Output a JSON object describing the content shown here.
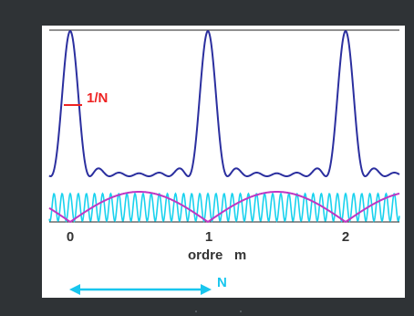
{
  "diagram": {
    "width_label": "1/N",
    "order_ticks": [
      "0",
      "1",
      "2"
    ],
    "order_axis_label": "ordre   m",
    "n_label": "N",
    "colors": {
      "main_curve": "#2b2f9f",
      "fast_fringes": "#19d2ee",
      "envelope": "#c037c3",
      "width_marker": "#ee2222",
      "arrow": "#19c6ee",
      "text": "#333333"
    }
  }
}
